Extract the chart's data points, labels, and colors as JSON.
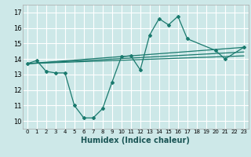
{
  "xlabel": "Humidex (Indice chaleur)",
  "xlim": [
    -0.5,
    23.5
  ],
  "ylim": [
    9.5,
    17.5
  ],
  "yticks": [
    10,
    11,
    12,
    13,
    14,
    15,
    16,
    17
  ],
  "xticks": [
    0,
    1,
    2,
    3,
    4,
    5,
    6,
    7,
    8,
    9,
    10,
    11,
    12,
    13,
    14,
    15,
    16,
    17,
    18,
    19,
    20,
    21,
    22,
    23
  ],
  "bg_color": "#cde8e8",
  "grid_color": "#ffffff",
  "line_color": "#1a7a6e",
  "main_line": {
    "x": [
      0,
      1,
      2,
      3,
      4,
      5,
      6,
      7,
      8,
      9,
      10,
      11,
      12,
      13,
      14,
      15,
      16,
      17,
      20,
      21,
      23
    ],
    "y": [
      13.7,
      13.9,
      13.2,
      13.1,
      13.1,
      11.0,
      10.2,
      10.2,
      10.8,
      12.5,
      14.15,
      14.2,
      13.3,
      15.55,
      16.6,
      16.2,
      16.75,
      15.3,
      14.55,
      14.0,
      14.75
    ]
  },
  "trend_lines": [
    {
      "x0": 0,
      "y0": 13.7,
      "x1": 23,
      "y1": 14.75
    },
    {
      "x0": 0,
      "y0": 13.7,
      "x1": 23,
      "y1": 14.45
    },
    {
      "x0": 0,
      "y0": 13.7,
      "x1": 23,
      "y1": 14.2
    }
  ],
  "extra_segment": {
    "x": [
      20,
      21,
      23
    ],
    "y": [
      14.55,
      14.0,
      14.75
    ]
  }
}
